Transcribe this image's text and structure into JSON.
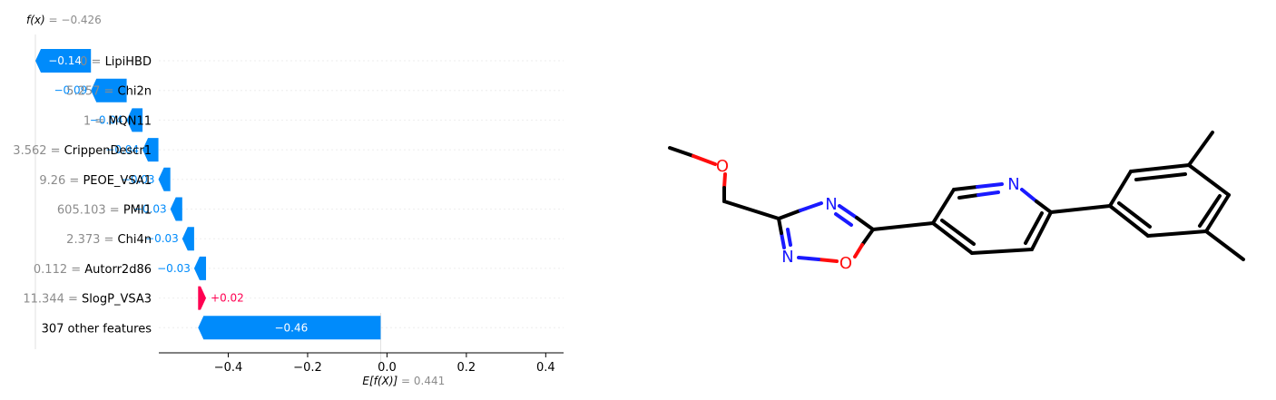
{
  "chart_data": {
    "type": "waterfall",
    "fx_label": "f(x)",
    "fx_value": "−0.426",
    "ex_label": "E[f(X)]",
    "ex_value": "0.441",
    "base_value": -0.016,
    "xlim": [
      -0.575,
      0.445
    ],
    "xticks": [
      -0.4,
      -0.2,
      0.0,
      0.2,
      0.4
    ],
    "xtick_labels": [
      "−0.4",
      "−0.2",
      "0.0",
      "0.2",
      "0.4"
    ],
    "features": [
      {
        "value": "0",
        "name": "LipiHBD",
        "contribution": -0.14,
        "label": "−0.14"
      },
      {
        "value": "5.257",
        "name": "Chi2n",
        "contribution": -0.09,
        "label": "−0.09"
      },
      {
        "value": "1",
        "name": "MQN11",
        "contribution": -0.04,
        "label": "−0.04"
      },
      {
        "value": "3.562",
        "name": "CrippenDescr1",
        "contribution": -0.04,
        "label": "−0.04"
      },
      {
        "value": "9.26",
        "name": "PEOE_VSA1",
        "contribution": -0.03,
        "label": "−0.03"
      },
      {
        "value": "605.103",
        "name": "PMI1",
        "contribution": -0.03,
        "label": "−0.03"
      },
      {
        "value": "2.373",
        "name": "Chi4n",
        "contribution": -0.03,
        "label": "−0.03"
      },
      {
        "value": "0.112",
        "name": "Autorr2d86",
        "contribution": -0.03,
        "label": "−0.03"
      },
      {
        "value": "11.344",
        "name": "SlogP_VSA3",
        "contribution": 0.02,
        "label": "+0.02"
      },
      {
        "value": "",
        "name": "307 other features",
        "contribution": -0.46,
        "label": "−0.46"
      }
    ],
    "colors": {
      "negative": "#008bfb",
      "positive": "#ff0051",
      "muted": "#8c8c8c"
    }
  },
  "molecule": {
    "atom_labels": [
      "O",
      "N",
      "N",
      "O",
      "N"
    ],
    "colors": {
      "bond": "#000000",
      "oxygen": "#ff0d0d",
      "nitrogen": "#1a1aff"
    }
  }
}
